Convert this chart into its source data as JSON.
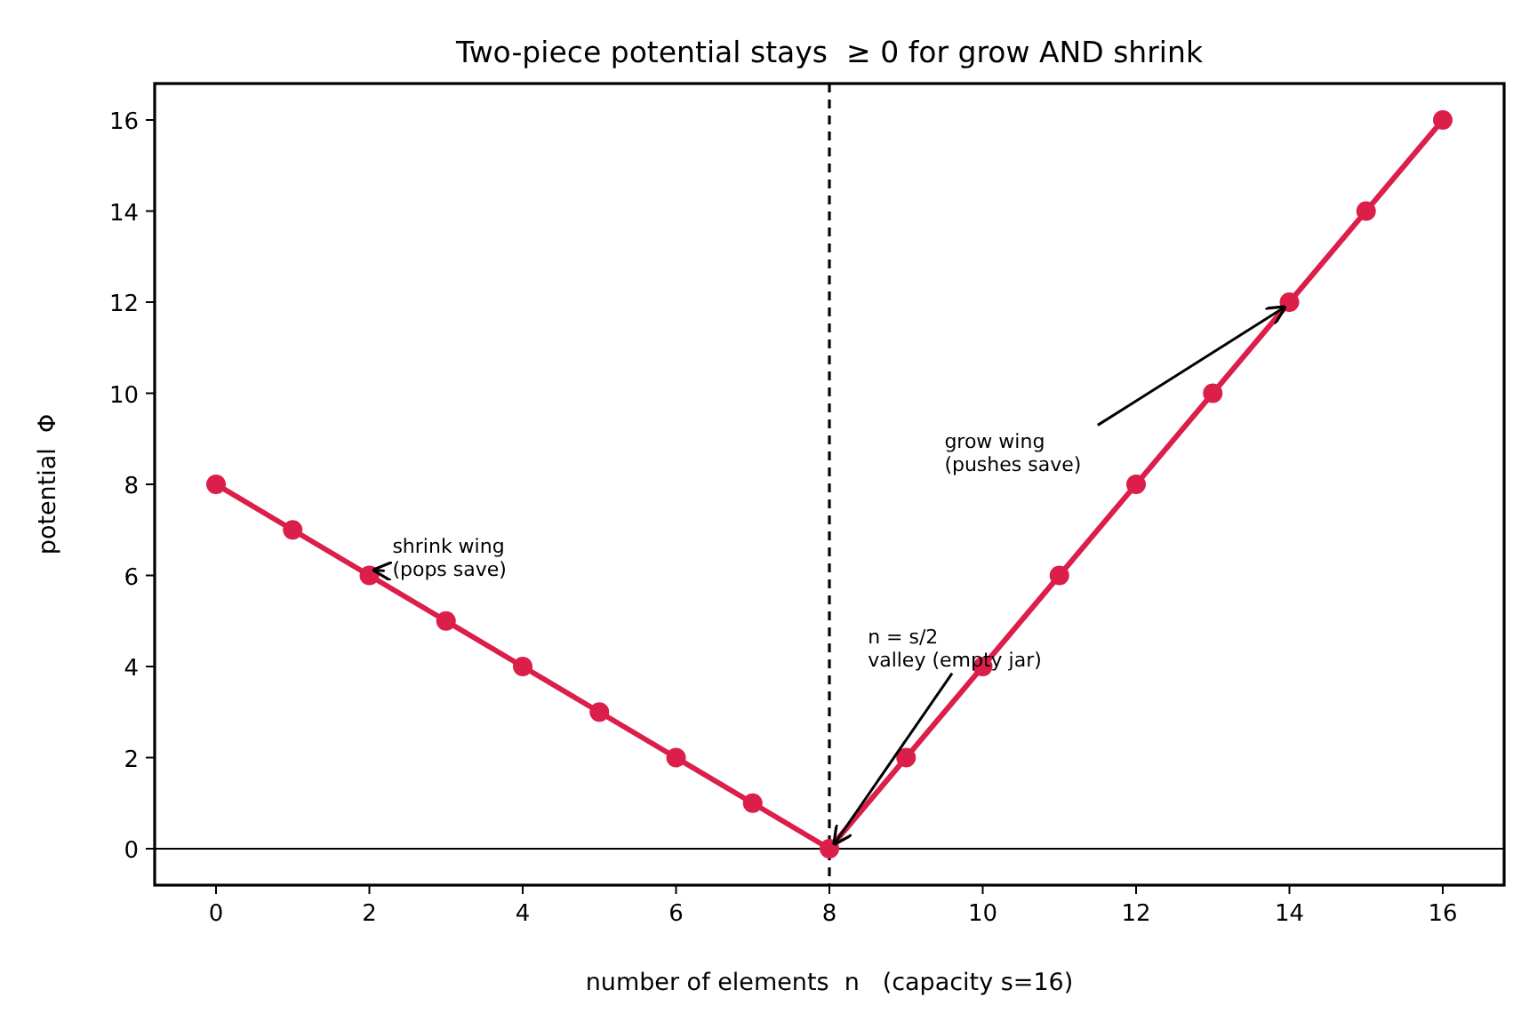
{
  "chart_data": {
    "type": "line",
    "title": "Two-piece potential stays  ≥ 0 for grow AND shrink",
    "xlabel": "number of elements  n   (capacity s=16)",
    "ylabel": "potential  Φ",
    "x": [
      0,
      1,
      2,
      3,
      4,
      5,
      6,
      7,
      8,
      9,
      10,
      11,
      12,
      13,
      14,
      15,
      16
    ],
    "series": [
      {
        "color": "#dc1e4a",
        "values": [
          8,
          7,
          6,
          5,
          4,
          3,
          2,
          1,
          0,
          2,
          4,
          6,
          8,
          10,
          12,
          14,
          16
        ]
      }
    ],
    "xlim": [
      -0.8,
      16.8
    ],
    "ylim": [
      -0.8,
      16.8
    ],
    "xticks": [
      0,
      2,
      4,
      6,
      8,
      10,
      12,
      14,
      16
    ],
    "yticks": [
      0,
      2,
      4,
      6,
      8,
      10,
      12,
      14,
      16
    ],
    "marker": "circle",
    "line_style": "solid",
    "grid": false,
    "ref_lines": [
      {
        "axis": "x",
        "value": 8,
        "line_style": "dashed",
        "color": "#000000"
      },
      {
        "axis": "y",
        "value": 0,
        "line_style": "solid",
        "color": "#000000"
      }
    ],
    "annotations": [
      {
        "text": "shrink wing\n(pops save)",
        "x": 2,
        "y": 6
      },
      {
        "text": "grow wing\n(pushes save)",
        "x": 14,
        "y": 12
      },
      {
        "text": "n = s/2\nvalley (empty jar)",
        "x": 8,
        "y": 0
      }
    ]
  }
}
